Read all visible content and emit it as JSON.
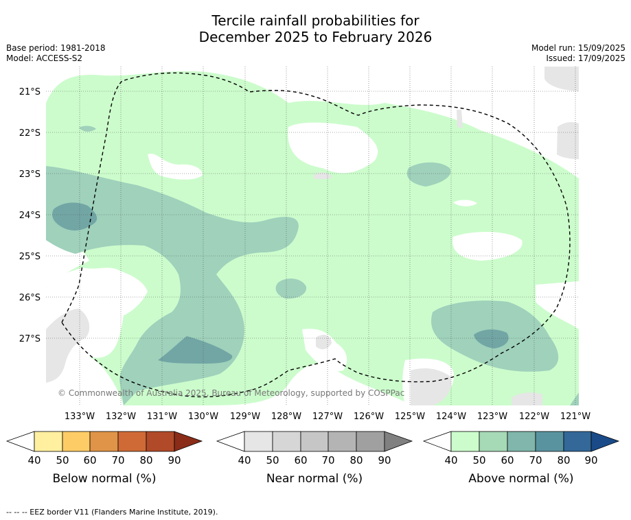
{
  "title_line1": "Tercile rainfall probabilities for",
  "title_line2": "December 2025 to February 2026",
  "base_period": "Base period: 1981-2018",
  "model": "Model: ACCESS-S2",
  "model_run": "Model run: 15/09/2025",
  "issued": "Issued: 17/09/2025",
  "copyright": "© Commonwealth of Australia 2025, Bureau of Meteorology, supported by COSPPac",
  "lat_labels": [
    "21°S",
    "22°S",
    "23°S",
    "24°S",
    "25°S",
    "26°S",
    "27°S"
  ],
  "lon_labels": [
    "133°W",
    "132°W",
    "131°W",
    "130°W",
    "129°W",
    "128°W",
    "127°W",
    "126°W",
    "125°W",
    "124°W",
    "123°W",
    "122°W",
    "121°W"
  ],
  "colorbars": [
    {
      "label": "Below normal (%)",
      "ticks": [
        "40",
        "50",
        "60",
        "70",
        "80",
        "90"
      ],
      "colors": [
        "#ffffff",
        "#fff0a0",
        "#fdcc66",
        "#e09448",
        "#cf6a36",
        "#b04a28",
        "#8a2c18"
      ]
    },
    {
      "label": "Near normal (%)",
      "ticks": [
        "40",
        "50",
        "60",
        "70",
        "80",
        "90"
      ],
      "colors": [
        "#ffffff",
        "#e6e6e6",
        "#d6d6d6",
        "#c6c6c6",
        "#b4b4b4",
        "#a0a0a0",
        "#808080"
      ]
    },
    {
      "label": "Above normal (%)",
      "ticks": [
        "40",
        "50",
        "60",
        "70",
        "80",
        "90"
      ],
      "colors": [
        "#ffffff",
        "#ccfccc",
        "#a6d9b6",
        "#80b6ab",
        "#5a93a0",
        "#336898",
        "#1a4b88"
      ]
    }
  ],
  "eez_note": "--  --  -- EEZ border V11 (Flanders Marine Institute, 2019).",
  "colors": {
    "above_50": "#ccfccc",
    "above_60": "#9fd1bb",
    "above_70": "#72a6a5",
    "near_50": "#e6e6e6"
  }
}
